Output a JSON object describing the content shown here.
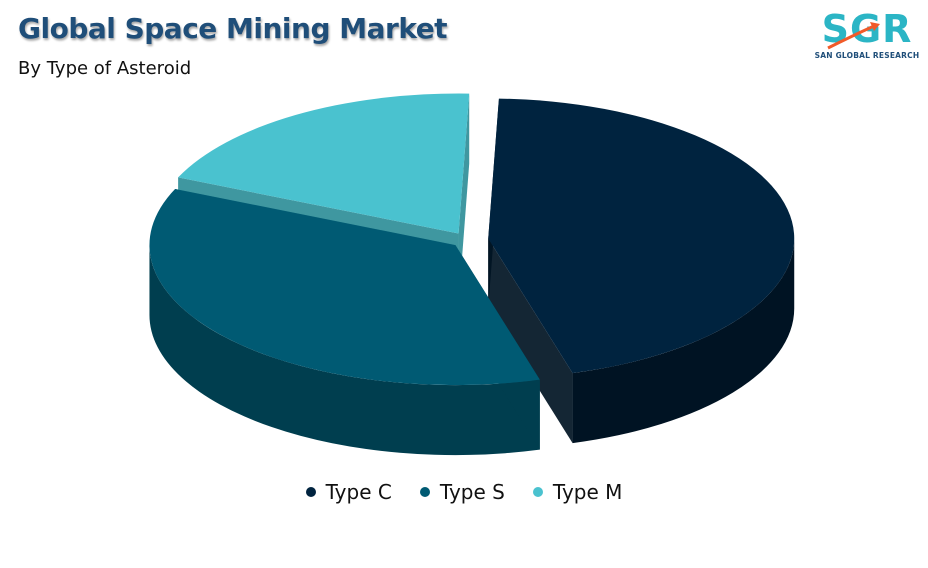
{
  "header": {
    "title": "Global Space Mining Market",
    "subtitle": "By Type of Asteroid"
  },
  "logo": {
    "text": "SGR",
    "tagline": "SAN GLOBAL RESEARCH"
  },
  "colors": {
    "title": "#1f4e79",
    "logo_teal": "#2bb5c5",
    "logo_orange": "#f15a29"
  },
  "chart_data": {
    "type": "pie",
    "title": "Global Space Mining Market",
    "subtitle": "By Type of Asteroid",
    "legend_position": "bottom",
    "exploded": true,
    "three_d": true,
    "categories": [
      "Type C",
      "Type S",
      "Type M"
    ],
    "values": [
      45,
      36,
      19
    ],
    "colors": [
      "#00233f",
      "#005a73",
      "#4ac2cf"
    ],
    "side_colors": [
      "#001323",
      "#003e4f",
      "#2f8e98"
    ]
  }
}
